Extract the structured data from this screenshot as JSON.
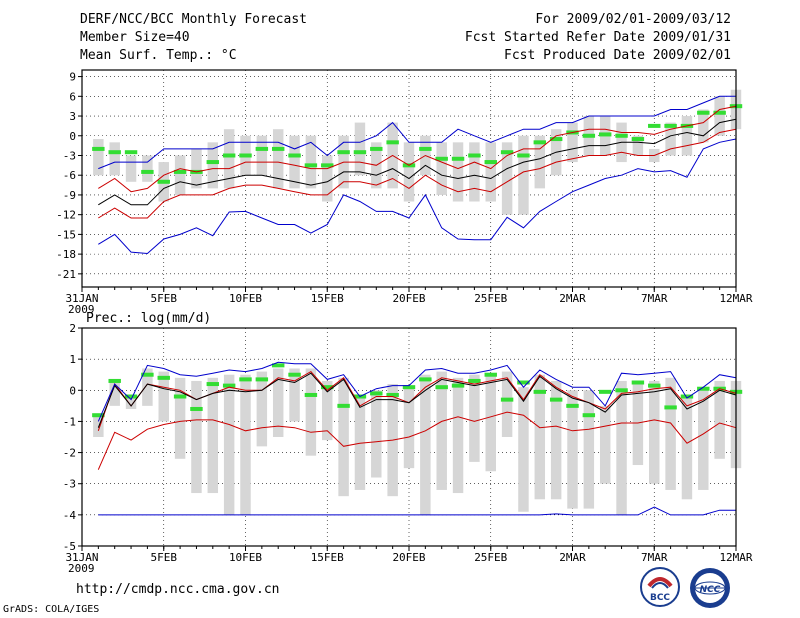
{
  "header": {
    "title": "DERF/NCC/BCC Monthly Forecast",
    "member_size": "Member Size=40",
    "variable": "Mean Surf. Temp.: °C",
    "period": "For 2009/02/01-2009/03/12",
    "started": "Fcst Started Refer Date 2009/01/31",
    "produced": "Fcst Produced Date 2009/02/01"
  },
  "footer": {
    "url": "http://cmdp.ncc.cma.gov.cn",
    "grads": "GrADS: COLA/IGES",
    "logo_left_text": "BCC",
    "logo_right_text": "NCC"
  },
  "colors": {
    "mean": "#000000",
    "spread": "#cc0000",
    "extreme": "#0000cc",
    "box": "#d6d6d6",
    "obs": "#33dd33"
  },
  "chart_data": [
    {
      "type": "line",
      "title": "Mean Surf. Temp.: °C",
      "x_ticks": [
        {
          "day": 0,
          "label": "31JAN",
          "sublabel": "2009"
        },
        {
          "day": 5,
          "label": "5FEB"
        },
        {
          "day": 10,
          "label": "10FEB"
        },
        {
          "day": 15,
          "label": "15FEB"
        },
        {
          "day": 20,
          "label": "20FEB"
        },
        {
          "day": 25,
          "label": "25FEB"
        },
        {
          "day": 30,
          "label": "2MAR"
        },
        {
          "day": 35,
          "label": "7MAR"
        },
        {
          "day": 40,
          "label": "12MAR"
        }
      ],
      "xlim": [
        0,
        40
      ],
      "ylim": [
        -23,
        10
      ],
      "y_ticks": [
        9,
        6,
        3,
        0,
        -3,
        -6,
        -9,
        -12,
        -15,
        -18,
        -21
      ],
      "x_days": [
        1,
        2,
        3,
        4,
        5,
        6,
        7,
        8,
        9,
        10,
        11,
        12,
        13,
        14,
        15,
        16,
        17,
        18,
        19,
        20,
        21,
        22,
        23,
        24,
        25,
        26,
        27,
        28,
        29,
        30,
        31,
        32,
        33,
        34,
        35,
        36,
        37,
        38,
        39,
        40
      ],
      "series": [
        {
          "name": "max",
          "color": "#0000cc",
          "values": [
            -5,
            -4,
            -4,
            -4,
            -2,
            -2,
            -2,
            -2,
            -1,
            -1,
            -1,
            -1,
            -2,
            -1,
            -3,
            -1,
            -1,
            0,
            2,
            -1,
            -1,
            -1,
            1,
            0,
            -1,
            0,
            1,
            1,
            2,
            2,
            3,
            3,
            3,
            3,
            3,
            4,
            4,
            5,
            6,
            6
          ]
        },
        {
          "name": "upper",
          "color": "#cc0000",
          "values": [
            -8,
            -6.5,
            -8.5,
            -8,
            -6,
            -5,
            -5.5,
            -5,
            -5,
            -4,
            -4,
            -4,
            -4.5,
            -5,
            -5,
            -4,
            -4,
            -4.5,
            -3,
            -4.5,
            -3,
            -4,
            -5,
            -4,
            -5,
            -3,
            -2,
            -2,
            0,
            0.5,
            1,
            1,
            0.5,
            0.5,
            0.2,
            1,
            1.5,
            2,
            4,
            4.5
          ]
        },
        {
          "name": "mean",
          "color": "#000000",
          "values": [
            -10.5,
            -9,
            -10.5,
            -10.5,
            -8,
            -7,
            -7.5,
            -7,
            -6.5,
            -6,
            -6,
            -6.5,
            -7,
            -7.5,
            -7,
            -5.5,
            -5.5,
            -6,
            -5,
            -6.5,
            -4.5,
            -6,
            -6.5,
            -6,
            -6.5,
            -5,
            -4,
            -3.5,
            -2.5,
            -2,
            -1.5,
            -1.5,
            -1,
            -1,
            -1.2,
            0,
            0.5,
            0,
            2,
            2.5
          ]
        },
        {
          "name": "lower",
          "color": "#cc0000",
          "values": [
            -12.5,
            -11,
            -12.5,
            -12.5,
            -10,
            -9,
            -9,
            -9,
            -8,
            -7.5,
            -7.5,
            -8,
            -8.5,
            -9,
            -9,
            -7,
            -7,
            -7.5,
            -6.5,
            -8,
            -6,
            -7.5,
            -8.5,
            -8,
            -8.5,
            -7,
            -5.5,
            -5,
            -4,
            -3.5,
            -3,
            -3,
            -2.5,
            -3,
            -3,
            -2,
            -1.5,
            -1,
            0.5,
            1
          ]
        },
        {
          "name": "min",
          "color": "#0000cc",
          "values": [
            -16.5,
            -15,
            -17.7,
            -17.9,
            -15.7,
            -15,
            -14,
            -15.2,
            -11.6,
            -11.5,
            -12.5,
            -13.5,
            -13.5,
            -14.8,
            -13.5,
            -9,
            -10,
            -11.5,
            -11.5,
            -12.5,
            -9,
            -14,
            -15.7,
            -15.8,
            -15.8,
            -12.4,
            -14,
            -11.5,
            -10,
            -8.5,
            -7.5,
            -6.5,
            -6,
            -5,
            -5.5,
            -5.3,
            -6.3,
            -2,
            -1,
            -0.5
          ]
        }
      ],
      "boxes": {
        "top": [
          -0.5,
          -1,
          -3,
          -3,
          -4,
          -3,
          -2,
          -1,
          1,
          0,
          0,
          1,
          0,
          0,
          -3,
          0,
          2,
          -1,
          2,
          -1,
          0,
          -1,
          -1,
          -1,
          -1,
          -1,
          0,
          0,
          1,
          2,
          3,
          3,
          2,
          0,
          -2,
          2,
          3,
          4,
          6,
          7
        ],
        "bottom": [
          -6,
          -6,
          -7,
          -7,
          -10,
          -9,
          -8,
          -8,
          -8,
          -6,
          -6,
          -8,
          -8,
          -8,
          -10,
          -8,
          -6,
          -8,
          -8,
          -10,
          -6,
          -9,
          -10,
          -10,
          -10,
          -12,
          -12,
          -8,
          -6,
          -4,
          -3,
          -3,
          -4,
          -3,
          -4,
          -3,
          -3,
          -1,
          0,
          1
        ]
      },
      "obs": [
        -2,
        -2.5,
        -2.5,
        -5.5,
        -7,
        -5.5,
        -5.5,
        -4,
        -3,
        -3,
        -2,
        -2,
        -3,
        -4.5,
        -4.5,
        -2.5,
        -2.5,
        -2,
        -1,
        -4.5,
        -2,
        -3.5,
        -3.5,
        -3,
        -4,
        -2.5,
        -3,
        -1,
        -0.5,
        0.5,
        0,
        0.2,
        0,
        -0.5,
        1.5,
        1.5,
        1.5,
        3.5,
        3.5,
        4.5
      ]
    },
    {
      "type": "line",
      "title": "Prec.: log(mm/d)",
      "x_ticks": [
        {
          "day": 0,
          "label": "31JAN",
          "sublabel": "2009"
        },
        {
          "day": 5,
          "label": "5FEB"
        },
        {
          "day": 10,
          "label": "10FEB"
        },
        {
          "day": 15,
          "label": "15FEB"
        },
        {
          "day": 20,
          "label": "20FEB"
        },
        {
          "day": 25,
          "label": "25FEB"
        },
        {
          "day": 30,
          "label": "2MAR"
        },
        {
          "day": 35,
          "label": "7MAR"
        },
        {
          "day": 40,
          "label": "12MAR"
        }
      ],
      "xlim": [
        0,
        40
      ],
      "ylim": [
        -5,
        2
      ],
      "y_ticks": [
        2,
        1,
        0,
        -1,
        -2,
        -3,
        -4,
        -5
      ],
      "x_days": [
        1,
        2,
        3,
        4,
        5,
        6,
        7,
        8,
        9,
        10,
        11,
        12,
        13,
        14,
        15,
        16,
        17,
        18,
        19,
        20,
        21,
        22,
        23,
        24,
        25,
        26,
        27,
        28,
        29,
        30,
        31,
        32,
        33,
        34,
        35,
        36,
        37,
        38,
        39,
        40
      ],
      "series": [
        {
          "name": "min",
          "color": "#0000cc",
          "values": [
            -4,
            -4,
            -4,
            -4,
            -4,
            -4,
            -4,
            -4,
            -4,
            -4,
            -4,
            -4,
            -4,
            -4,
            -4,
            -4,
            -4,
            -4,
            -4,
            -4,
            -4,
            -4,
            -4,
            -4,
            -4,
            -4,
            -4,
            -4,
            -3.97,
            -4,
            -4,
            -4,
            -4,
            -4,
            -3.75,
            -4,
            -4,
            -4,
            -3.85,
            -3.85
          ]
        },
        {
          "name": "lower",
          "color": "#cc0000",
          "values": [
            -2.55,
            -1.35,
            -1.6,
            -1.25,
            -1.1,
            -1,
            -0.95,
            -0.95,
            -1.1,
            -1.3,
            -1.2,
            -1.15,
            -1.2,
            -1.35,
            -1.3,
            -1.8,
            -1.7,
            -1.65,
            -1.6,
            -1.5,
            -1.3,
            -1,
            -0.85,
            -1,
            -0.85,
            -0.7,
            -0.8,
            -1.2,
            -1.15,
            -1.3,
            -1.25,
            -1.15,
            -1.05,
            -1.05,
            -0.95,
            -1.05,
            -1.7,
            -1.4,
            -1.05,
            -1.2
          ]
        },
        {
          "name": "upper",
          "color": "#cc0000",
          "values": [
            -1.3,
            0.2,
            -0.5,
            0.2,
            0.1,
            0,
            -0.3,
            -0.1,
            0.1,
            0,
            0,
            0.4,
            0.3,
            0.6,
            0,
            0.4,
            -0.5,
            -0.2,
            -0.2,
            -0.4,
            0.1,
            0.4,
            0.3,
            0.2,
            0.3,
            0.4,
            -0.3,
            0.5,
            0.1,
            -0.2,
            -0.4,
            -0.6,
            -0.1,
            -0.05,
            0.05,
            0.1,
            -0.5,
            -0.3,
            0.05,
            -0.1
          ]
        },
        {
          "name": "mean",
          "color": "#000000",
          "values": [
            -1.2,
            0.15,
            -0.5,
            0.2,
            0.05,
            -0.05,
            -0.3,
            -0.1,
            0,
            -0.05,
            0,
            0.35,
            0.25,
            0.55,
            -0.05,
            0.35,
            -0.55,
            -0.3,
            -0.3,
            -0.4,
            0,
            0.35,
            0.25,
            0.15,
            0.25,
            0.35,
            -0.35,
            0.45,
            0.05,
            -0.25,
            -0.4,
            -0.7,
            -0.15,
            -0.1,
            -0.05,
            0.05,
            -0.6,
            -0.35,
            0,
            -0.15
          ]
        },
        {
          "name": "max",
          "color": "#0000cc",
          "values": [
            -1,
            0.2,
            -0.3,
            0.8,
            0.7,
            0.5,
            0.45,
            0.55,
            0.65,
            0.6,
            0.7,
            0.9,
            0.85,
            0.85,
            0.35,
            0.5,
            -0.2,
            0.05,
            0.15,
            0.15,
            0.65,
            0.7,
            0.55,
            0.55,
            0.65,
            0.8,
            0.1,
            0.65,
            0.35,
            0.1,
            0.1,
            -0.5,
            0.55,
            0.5,
            0.55,
            0.6,
            -0.25,
            0.1,
            0.5,
            0.4
          ]
        }
      ],
      "boxes": {
        "top": [
          -0.8,
          0.3,
          -0.2,
          0.7,
          0.6,
          0.4,
          0.3,
          0.4,
          0.5,
          0.5,
          0.6,
          0.7,
          0.7,
          0.7,
          0.3,
          0.4,
          -0.2,
          0,
          0.2,
          0.1,
          0.5,
          0.6,
          0.4,
          0.5,
          0.5,
          0.6,
          0.1,
          0.5,
          0.3,
          0,
          0,
          -0.5,
          0.3,
          0.3,
          0.3,
          0.4,
          -0.2,
          0,
          0.3,
          0.3
        ],
        "bottom": [
          -1.5,
          -0.5,
          -0.6,
          -0.5,
          -1,
          -2.2,
          -3.3,
          -3.3,
          -4,
          -4,
          -1.8,
          -1.5,
          -1,
          -2.1,
          -1.6,
          -3.4,
          -3.2,
          -2.8,
          -3.4,
          -2.5,
          -4,
          -3.2,
          -3.3,
          -2.3,
          -2.6,
          -1.5,
          -3.9,
          -3.5,
          -3.5,
          -3.8,
          -3.8,
          -3,
          -4,
          -2.4,
          -3,
          -3.2,
          -3.5,
          -3.2,
          -2.2,
          -2.5
        ]
      },
      "obs": [
        -0.8,
        0.3,
        -0.2,
        0.5,
        0.4,
        -0.2,
        -0.6,
        0.2,
        0.15,
        0.35,
        0.35,
        0.8,
        0.5,
        -0.15,
        0.1,
        -0.5,
        -0.2,
        -0.1,
        -0.15,
        0.1,
        0.35,
        0.1,
        0.15,
        0.3,
        0.5,
        -0.3,
        0.25,
        -0.05,
        -0.3,
        -0.5,
        -0.8,
        -0.05,
        0,
        0.25,
        0.15,
        -0.55,
        -0.2,
        0.05,
        0.05,
        -0.05
      ]
    }
  ]
}
